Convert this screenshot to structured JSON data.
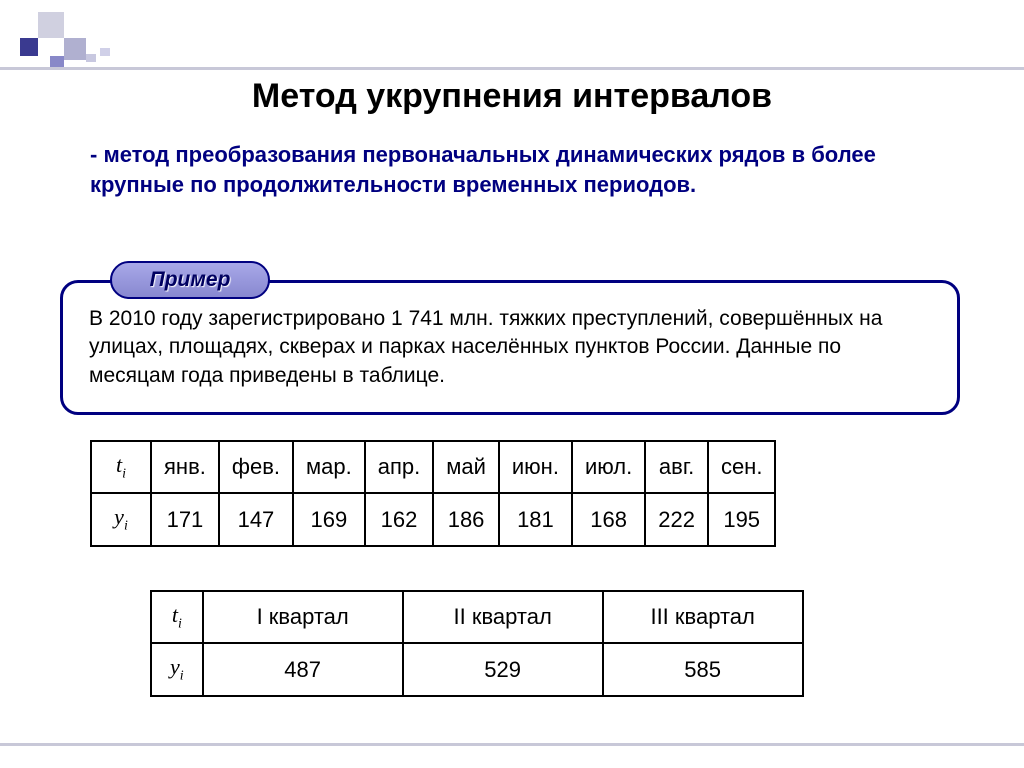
{
  "title": "Метод укрупнения интервалов",
  "definition": "- метод преобразования первоначальных динамических рядов в более крупные по продолжительности временных периодов.",
  "example_label": "Пример",
  "example_text": "В 2010 году зарегистрировано 1 741 млн. тяжких преступлений, совершённых на улицах, площадях, скверах и парках населённых пунктов России. Данные по месяцам года приведены в таблице.",
  "row_labels": {
    "t": "t",
    "t_sub": "i",
    "y": "y",
    "y_sub": "i"
  },
  "months_table": {
    "columns": [
      "янв.",
      "фев.",
      "мар.",
      "апр.",
      "май",
      "июн.",
      "июл.",
      "авг.",
      "сен."
    ],
    "values": [
      171,
      147,
      169,
      162,
      186,
      181,
      168,
      222,
      195
    ],
    "border_color": "#000000",
    "font_size": 22
  },
  "quarters_table": {
    "columns": [
      "I квартал",
      "II квартал",
      "III квартал"
    ],
    "values": [
      487,
      529,
      585
    ],
    "border_color": "#000000",
    "font_size": 22
  },
  "colors": {
    "title_text": "#000000",
    "definition_text": "#000080",
    "example_border": "#000080",
    "example_tag_bg_top": "#a8a8e8",
    "example_tag_bg_bottom": "#8888d0",
    "decoration_line": "#c8c8d8",
    "background": "#ffffff"
  },
  "typography": {
    "title_fontsize": 34,
    "definition_fontsize": 22,
    "example_fontsize": 21,
    "table_fontsize": 22
  }
}
